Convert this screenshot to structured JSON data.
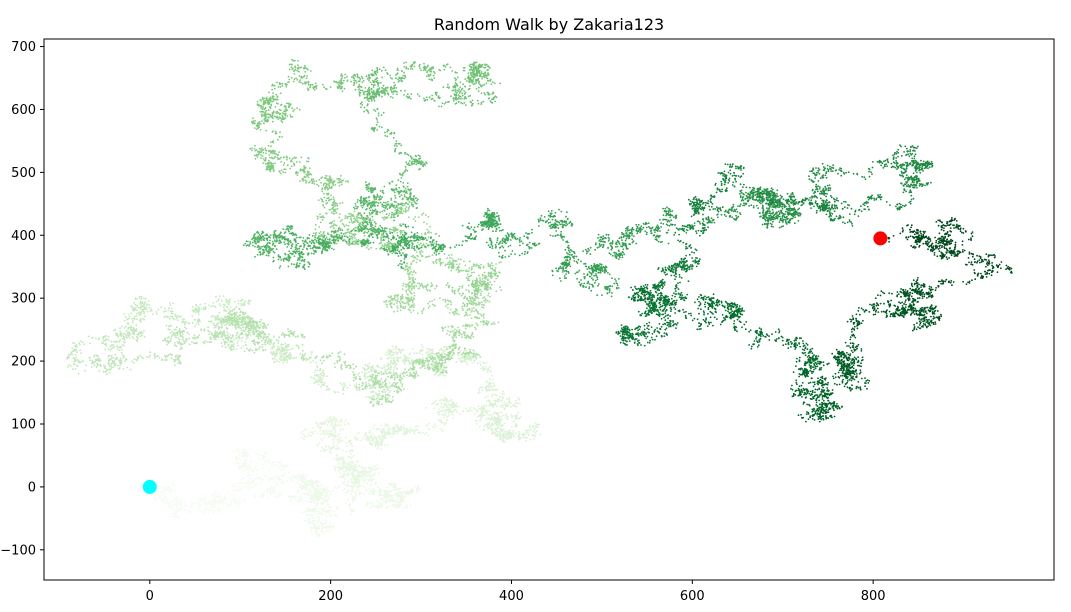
{
  "chart_data": {
    "type": "scatter",
    "title": "Random Walk by Zakaria123",
    "xlabel": "",
    "ylabel": "",
    "xlim": [
      -117,
      1000
    ],
    "ylim": [
      -148,
      712
    ],
    "x_ticks": [
      0,
      200,
      400,
      600,
      800
    ],
    "y_ticks": [
      -100,
      0,
      100,
      200,
      300,
      400,
      500,
      600,
      700
    ],
    "grid": false,
    "colormap": "Greens",
    "colormap_stops": [
      "#f7fcf5",
      "#e5f5e0",
      "#c7e9c0",
      "#a1d99b",
      "#74c476",
      "#41ab5d",
      "#238b45",
      "#006d2c",
      "#00441b"
    ],
    "walk_waypoints": [
      {
        "x": 0,
        "y": 0
      },
      {
        "x": 60,
        "y": -40
      },
      {
        "x": 130,
        "y": 40
      },
      {
        "x": 190,
        "y": -60
      },
      {
        "x": 230,
        "y": 20
      },
      {
        "x": 290,
        "y": -10
      },
      {
        "x": 180,
        "y": 90
      },
      {
        "x": 330,
        "y": 120
      },
      {
        "x": 420,
        "y": 80
      },
      {
        "x": 320,
        "y": 190
      },
      {
        "x": 150,
        "y": 220
      },
      {
        "x": -50,
        "y": 240
      },
      {
        "x": 120,
        "y": 260
      },
      {
        "x": 260,
        "y": 180
      },
      {
        "x": 350,
        "y": 240
      },
      {
        "x": 290,
        "y": 300
      },
      {
        "x": 380,
        "y": 330
      },
      {
        "x": 260,
        "y": 380
      },
      {
        "x": 200,
        "y": 470
      },
      {
        "x": 140,
        "y": 560
      },
      {
        "x": 270,
        "y": 650
      },
      {
        "x": 370,
        "y": 620
      },
      {
        "x": 300,
        "y": 520
      },
      {
        "x": 250,
        "y": 440
      },
      {
        "x": 130,
        "y": 380
      },
      {
        "x": 260,
        "y": 400
      },
      {
        "x": 380,
        "y": 430
      },
      {
        "x": 420,
        "y": 380
      },
      {
        "x": 480,
        "y": 320
      },
      {
        "x": 560,
        "y": 400
      },
      {
        "x": 690,
        "y": 470
      },
      {
        "x": 840,
        "y": 510
      },
      {
        "x": 770,
        "y": 430
      },
      {
        "x": 600,
        "y": 350
      },
      {
        "x": 530,
        "y": 230
      },
      {
        "x": 640,
        "y": 290
      },
      {
        "x": 730,
        "y": 180
      },
      {
        "x": 740,
        "y": 110
      },
      {
        "x": 780,
        "y": 270
      },
      {
        "x": 860,
        "y": 280
      },
      {
        "x": 940,
        "y": 350
      },
      {
        "x": 870,
        "y": 390
      },
      {
        "x": 808,
        "y": 395
      }
    ],
    "start_point": {
      "x": 0,
      "y": 0,
      "color": "#00ffff"
    },
    "end_point": {
      "x": 808,
      "y": 395,
      "color": "#ff0000"
    }
  }
}
